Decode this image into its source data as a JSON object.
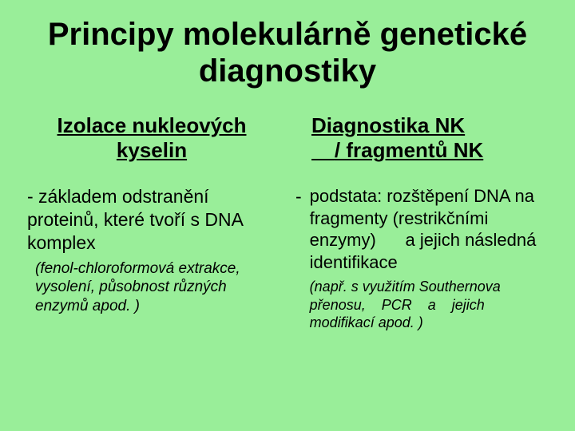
{
  "background_color": "#99ee99",
  "text_color": "#000000",
  "title": "Principy molekulárně genetické diagnostiky",
  "left": {
    "heading": "Izolace nukleových kyselin",
    "body": "- základem odstranění proteinů, které tvoří s DNA komplex",
    "paren": "(fenol-chloroformová extrakce, vysolení, působnost různých enzymů apod. )"
  },
  "right": {
    "heading_line1": "Diagnostika NK",
    "heading_line2": "/ fragmentů NK",
    "bullet_dash": "-",
    "body": "podstata: rozštěpení DNA na fragmenty (restrikčními enzymy)      a jejich následná identifikace",
    "paren": "(např. s využitím Southernova přenosu,    PCR    a    jejich modifikací apod. )"
  },
  "typography": {
    "title_fontsize": 40,
    "heading_fontsize": 26,
    "body_fontsize": 23,
    "paren_fontsize": 19,
    "font_family": "Arial"
  }
}
